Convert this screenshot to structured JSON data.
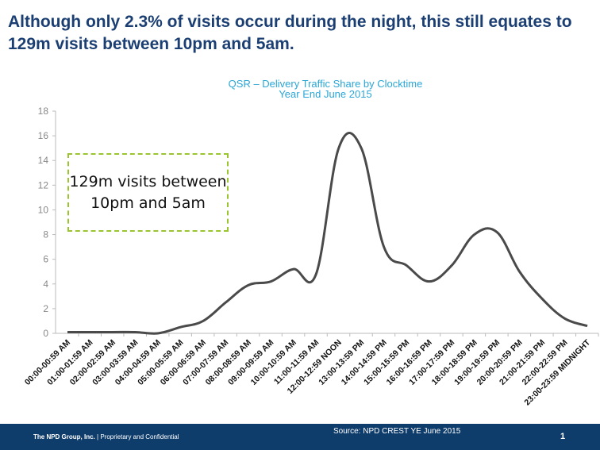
{
  "headline": "Although only 2.3% of visits occur during the night, this still equates to 129m visits between 10pm and 5am.",
  "callout": "129m visits between 10pm and 5am",
  "footer": {
    "company": "The NPD Group, Inc.",
    "separator": "|",
    "confidential": "Proprietary and Confidential",
    "source": "Source: NPD CREST  YE June  2015",
    "page": "1"
  },
  "chart_data": {
    "type": "line",
    "title": "QSR – Delivery Traffic Share by Clocktime",
    "subtitle": "Year End June 2015",
    "xlabel": "",
    "ylabel": "",
    "ylim": [
      0,
      18
    ],
    "yticks": [
      "0",
      "2",
      "4",
      "6",
      "8",
      "10",
      "12",
      "14",
      "16",
      "18"
    ],
    "grid": false,
    "color": "#4a4a4a",
    "categories": [
      "00:00-00:59 AM",
      "01:00-01:59 AM",
      "02:00-02:59 AM",
      "03:00-03:59 AM",
      "04:00-04:59 AM",
      "05:00-05:59 AM",
      "06:00-06:59 AM",
      "07:00-07:59 AM",
      "08:00-08:59 AM",
      "09:00-09:59 AM",
      "10:00-10:59 AM",
      "11:00-11:59 AM",
      "12:00-12:59 NOON",
      "13:00-13:59 PM",
      "14:00-14:59 PM",
      "15:00-15:59 PM",
      "16:00-16:59 PM",
      "17:00-17:59 PM",
      "18:00-18:59 PM",
      "19:00-19:59 PM",
      "20:00-20:59 PM",
      "21:00-21:59 PM",
      "22:00-22:59 PM",
      "23:00-23:59 MIDNIGHT"
    ],
    "values": [
      0.1,
      0.1,
      0.1,
      0.1,
      0.0,
      0.5,
      1.0,
      2.5,
      3.9,
      4.2,
      5.2,
      4.8,
      15.0,
      15.0,
      7.0,
      5.5,
      4.2,
      5.5,
      8.0,
      8.2,
      5.0,
      2.8,
      1.2,
      0.6
    ]
  }
}
